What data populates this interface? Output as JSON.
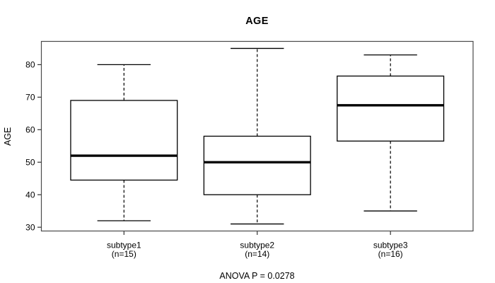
{
  "page": {
    "background": "#ffffff"
  },
  "chart_data": {
    "type": "boxplot",
    "title": "AGE",
    "ylabel": "AGE",
    "xlabel": "",
    "annotation": "ANOVA P = 0.0278",
    "ylim": [
      28.84,
      87.16
    ],
    "xlim": [
      0.38,
      3.62
    ],
    "yticks": [
      30,
      40,
      50,
      60,
      70,
      80
    ],
    "grid": false,
    "box_half_width_units": 0.4,
    "cap_half_width_units": 0.2,
    "colors": {
      "line": "#000000",
      "frame": "#4a4a4a",
      "tick": "#333333",
      "box_fill": "#ffffff",
      "background": "#ffffff"
    },
    "groups": [
      {
        "label": "subtype1",
        "sublabel": "(n=15)",
        "x": 1,
        "min": 32,
        "q1": 44.5,
        "median": 52,
        "q3": 69,
        "max": 80
      },
      {
        "label": "subtype2",
        "sublabel": "(n=14)",
        "x": 2,
        "min": 31,
        "q1": 40,
        "median": 50,
        "q3": 58,
        "max": 85
      },
      {
        "label": "subtype3",
        "sublabel": "(n=16)",
        "x": 3,
        "min": 35,
        "q1": 56.5,
        "median": 67.5,
        "q3": 76.5,
        "max": 83
      }
    ]
  }
}
